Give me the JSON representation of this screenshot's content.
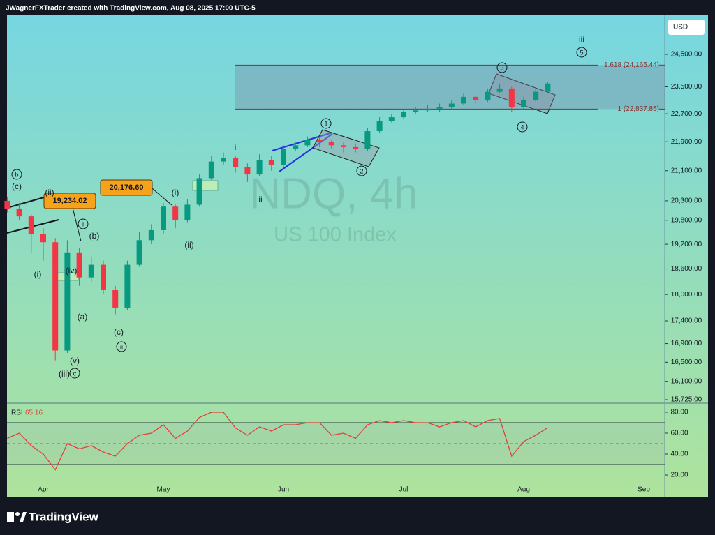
{
  "header": "JWagnerFXTrader created with TradingView.com, Aug 08, 2025 17:00 UTC-5",
  "footer": "TradingView",
  "chart_data": {
    "type": "candlestick",
    "title": "NDQ, 4h",
    "subtitle": "US 100 Index",
    "currency": "USD",
    "log_scale": true,
    "up_color": "#089981",
    "down_color": "#f23645",
    "categories": [
      null,
      null,
      null,
      "Apr",
      null,
      null,
      null,
      null,
      null,
      null,
      null,
      null,
      null,
      "May",
      null,
      null,
      null,
      null,
      null,
      null,
      null,
      null,
      null,
      "Jun",
      null,
      null,
      null,
      null,
      null,
      null,
      null,
      null,
      null,
      "Jul",
      null,
      null,
      null,
      null,
      null,
      null,
      null,
      null,
      null,
      "Aug",
      null,
      null,
      null,
      null,
      null,
      null,
      null,
      null,
      null,
      "Sep"
    ],
    "open": [
      20300,
      20100,
      19900,
      19450,
      19250,
      16750,
      19000,
      18400,
      18700,
      18100,
      17700,
      18700,
      19300,
      19550,
      20150,
      19800,
      20200,
      20900,
      21350,
      21450,
      21200,
      21000,
      21400,
      21250,
      21700,
      21800,
      21950,
      21900,
      21800,
      21750,
      21700,
      22200,
      22500,
      22600,
      22750,
      22800,
      22850,
      22900,
      23000,
      23200,
      23100,
      23350,
      23450,
      22900,
      23100,
      23350,
      null,
      null,
      null,
      null,
      null,
      null,
      null,
      null
    ],
    "high": [
      20400,
      20250,
      19950,
      19600,
      19350,
      19300,
      19100,
      18900,
      18800,
      18200,
      18800,
      19500,
      19700,
      20250,
      20200,
      20350,
      21000,
      21500,
      21600,
      21500,
      21300,
      21550,
      21500,
      21800,
      21900,
      22050,
      22050,
      21950,
      21900,
      21850,
      22300,
      22600,
      22700,
      22850,
      22900,
      22950,
      23000,
      23100,
      23300,
      23250,
      23450,
      23600,
      23500,
      23200,
      23450,
      23650,
      null,
      null,
      null,
      null,
      null,
      null,
      null,
      null
    ],
    "low": [
      20000,
      19800,
      19000,
      18800,
      16540,
      16700,
      18200,
      18300,
      18000,
      17550,
      17650,
      18650,
      19200,
      19450,
      19600,
      19750,
      20150,
      20850,
      21250,
      21050,
      20800,
      20950,
      21100,
      21200,
      21650,
      21750,
      21750,
      21700,
      21600,
      21600,
      21650,
      22150,
      22450,
      22550,
      22700,
      22750,
      22750,
      22850,
      22950,
      23000,
      23050,
      23300,
      22750,
      22850,
      23050,
      23300,
      null,
      null,
      null,
      null,
      null,
      null,
      null,
      null
    ],
    "close": [
      20100,
      19900,
      19450,
      19250,
      16750,
      19000,
      18400,
      18700,
      18100,
      17700,
      18700,
      19300,
      19550,
      20150,
      19800,
      20200,
      20900,
      21350,
      21450,
      21200,
      21000,
      21400,
      21250,
      21700,
      21800,
      21950,
      21900,
      21800,
      21750,
      21700,
      22200,
      22500,
      22600,
      22750,
      22800,
      22850,
      22900,
      23000,
      23200,
      23100,
      23350,
      23450,
      22900,
      23100,
      23350,
      23600,
      null,
      null,
      null,
      null,
      null,
      null,
      null,
      null
    ],
    "ylim": [
      15655,
      25760
    ],
    "yticks": [
      {
        "value": 24500,
        "label": "24,500.00"
      },
      {
        "value": 23500,
        "label": "23,500.00"
      },
      {
        "value": 22700,
        "label": "22,700.00"
      },
      {
        "value": 21900,
        "label": "21,900.00"
      },
      {
        "value": 21100,
        "label": "21,100.00"
      },
      {
        "value": 20300,
        "label": "20,300.00"
      },
      {
        "value": 19800,
        "label": "19,800.00"
      },
      {
        "value": 19200,
        "label": "19,200.00"
      },
      {
        "value": 18600,
        "label": "18,600.00"
      },
      {
        "value": 18000,
        "label": "18,000.00"
      },
      {
        "value": 17400,
        "label": "17,400.00"
      },
      {
        "value": 16900,
        "label": "16,900.00"
      },
      {
        "value": 16500,
        "label": "16,500.00"
      },
      {
        "value": 16100,
        "label": "16,100.00"
      },
      {
        "value": 15725,
        "label": "15,725.00"
      }
    ],
    "fib_levels": [
      {
        "value": 24165.44,
        "label": "1.618 (24,165.44)"
      },
      {
        "value": 22837.85,
        "label": "1 (22,837.85)"
      }
    ],
    "fib_color": "#8b2f2f",
    "price_callouts": [
      "19,234.02",
      "20,176.60"
    ],
    "wave_labels": [
      "iii",
      "5",
      "3",
      "4",
      "1",
      "2",
      "i",
      "ii",
      "(i)",
      "(ii)",
      "b",
      "(c)",
      "i",
      "(b)",
      "(i)",
      "(ii)",
      "(iv)",
      "(a)",
      "(v)",
      "(iii)",
      "c",
      "(c)",
      "ii"
    ],
    "rsi": {
      "name": "RSI",
      "color": "#e0403a",
      "values": [
        55,
        60,
        48,
        40,
        25,
        50,
        45,
        48,
        42,
        38,
        50,
        58,
        60,
        68,
        55,
        62,
        75,
        80,
        80,
        65,
        58,
        66,
        62,
        68,
        68,
        70,
        70,
        58,
        60,
        55,
        68,
        72,
        70,
        72,
        70,
        70,
        66,
        70,
        72,
        66,
        72,
        74,
        38,
        52,
        58,
        65.16,
        null,
        null,
        null,
        null,
        null,
        null,
        null,
        null
      ],
      "ylim": [
        -1.3,
        87.3
      ],
      "yticks": [
        {
          "value": 80,
          "label": "80.00"
        },
        {
          "value": 60,
          "label": "60.00"
        },
        {
          "value": 40,
          "label": "40.00"
        },
        {
          "value": 20,
          "label": "20.00"
        }
      ],
      "bands": [
        70,
        50,
        30
      ]
    }
  }
}
